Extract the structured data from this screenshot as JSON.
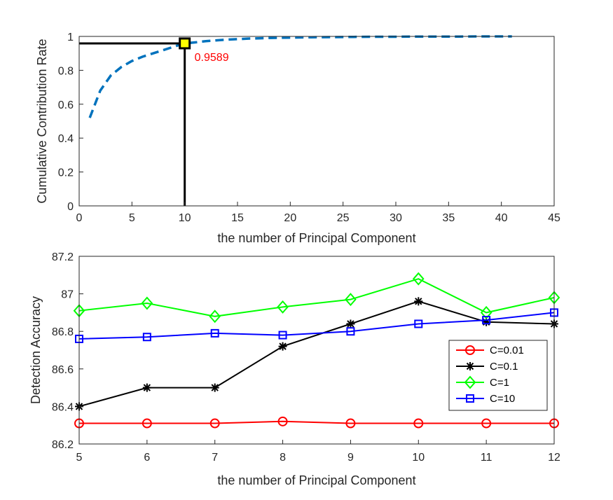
{
  "chart_data": [
    {
      "type": "line",
      "xlabel": "the number of Principal Component",
      "ylabel": "Cumulative Contribution Rate",
      "xlim": [
        0,
        45
      ],
      "ylim": [
        0,
        1
      ],
      "xticks": [
        "0",
        "5",
        "10",
        "15",
        "20",
        "25",
        "30",
        "35",
        "40",
        "45"
      ],
      "yticks": [
        "0",
        "0.2",
        "0.4",
        "0.6",
        "0.8",
        "1"
      ],
      "grid": false,
      "series": [
        {
          "color": "#0072BD",
          "style": "dashed",
          "x": [
            1,
            2,
            3,
            4,
            5,
            6,
            7,
            8,
            9,
            10,
            11,
            12,
            13,
            14,
            15,
            16,
            17,
            18,
            19,
            20,
            22,
            24,
            26,
            28,
            30,
            32,
            34,
            36,
            38,
            40,
            41
          ],
          "y": [
            0.52,
            0.68,
            0.77,
            0.82,
            0.855,
            0.88,
            0.9,
            0.92,
            0.94,
            0.9589,
            0.965,
            0.972,
            0.977,
            0.981,
            0.984,
            0.987,
            0.989,
            0.991,
            0.992,
            0.993,
            0.995,
            0.996,
            0.997,
            0.998,
            0.998,
            0.999,
            0.999,
            0.999,
            1.0,
            1.0,
            1.0
          ]
        }
      ],
      "highlight": {
        "x": 10,
        "y": 0.9589,
        "label": "0.9589",
        "label_color": "#ff0000",
        "marker_color": "#ffff00"
      }
    },
    {
      "type": "line",
      "xlabel": "the number of Principal Component",
      "ylabel": "Detection Accuracy",
      "xlim": [
        5,
        12
      ],
      "ylim": [
        86.2,
        87.2
      ],
      "xticks": [
        "5",
        "6",
        "7",
        "8",
        "9",
        "10",
        "11",
        "12"
      ],
      "yticks": [
        "86.2",
        "86.4",
        "86.6",
        "86.8",
        "87",
        "87.2"
      ],
      "grid": false,
      "legend_position": "right",
      "x": [
        5,
        6,
        7,
        8,
        9,
        10,
        11,
        12
      ],
      "series": [
        {
          "name": "C=0.01",
          "color": "#ff0000",
          "marker": "circle",
          "values": [
            86.31,
            86.31,
            86.31,
            86.32,
            86.31,
            86.31,
            86.31,
            86.31
          ]
        },
        {
          "name": "C=0.1",
          "color": "#000000",
          "marker": "asterisk",
          "values": [
            86.4,
            86.5,
            86.5,
            86.72,
            86.84,
            86.96,
            86.85,
            86.84
          ]
        },
        {
          "name": "C=1",
          "color": "#00ff00",
          "marker": "diamond",
          "values": [
            86.91,
            86.95,
            86.88,
            86.93,
            86.97,
            87.08,
            86.9,
            86.98
          ]
        },
        {
          "name": "C=10",
          "color": "#0000ff",
          "marker": "square",
          "values": [
            86.76,
            86.77,
            86.79,
            86.78,
            86.8,
            86.84,
            86.86,
            86.9
          ]
        }
      ]
    }
  ]
}
